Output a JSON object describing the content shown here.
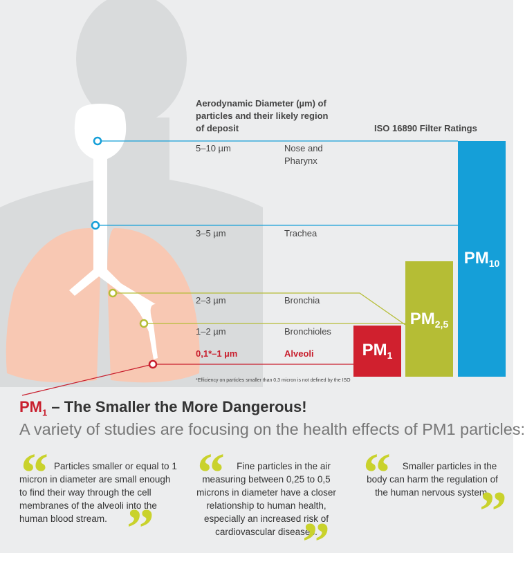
{
  "header": {
    "title": "Aerodynamic Diameter (µm) of particles and their likely region of deposit",
    "ratings_title": "ISO 16890 Filter Ratings"
  },
  "rows": [
    {
      "diameter": "5–10 µm",
      "region": "Nose and Pharynx"
    },
    {
      "diameter": "3–5 µm",
      "region": "Trachea"
    },
    {
      "diameter": "2–3 µm",
      "region": "Bronchia"
    },
    {
      "diameter": "1–2 µm",
      "region": "Bronchioles"
    },
    {
      "diameter": "0,1*–1 µm",
      "region": "Alveoli"
    }
  ],
  "bars": [
    {
      "label": "PM",
      "sub": "1"
    },
    {
      "label": "PM",
      "sub": "2,5"
    },
    {
      "label": "PM",
      "sub": "10"
    }
  ],
  "footnote": "*Efficiency on particles smaller than 0,3 micron is not defined by the ISO",
  "heading": {
    "prefix": "PM",
    "sub": "1",
    "text": " – The Smaller the More Dangerous!"
  },
  "subheading": "A variety of studies are focusing on the health effects of PM1 particles:",
  "quotes": [
    "Particles smaller or equal to 1 micron in diameter are small enough to find their way through the cell membranes of the alveoli into the human blood stream.",
    "Fine particles in the air measuring between 0,25 to 0,5 microns in diameter have a closer relationship to human health, especially an increased risk of cardiovascular diseases.",
    "Smaller particles in the body can harm the regulation of the human nervous system."
  ]
}
